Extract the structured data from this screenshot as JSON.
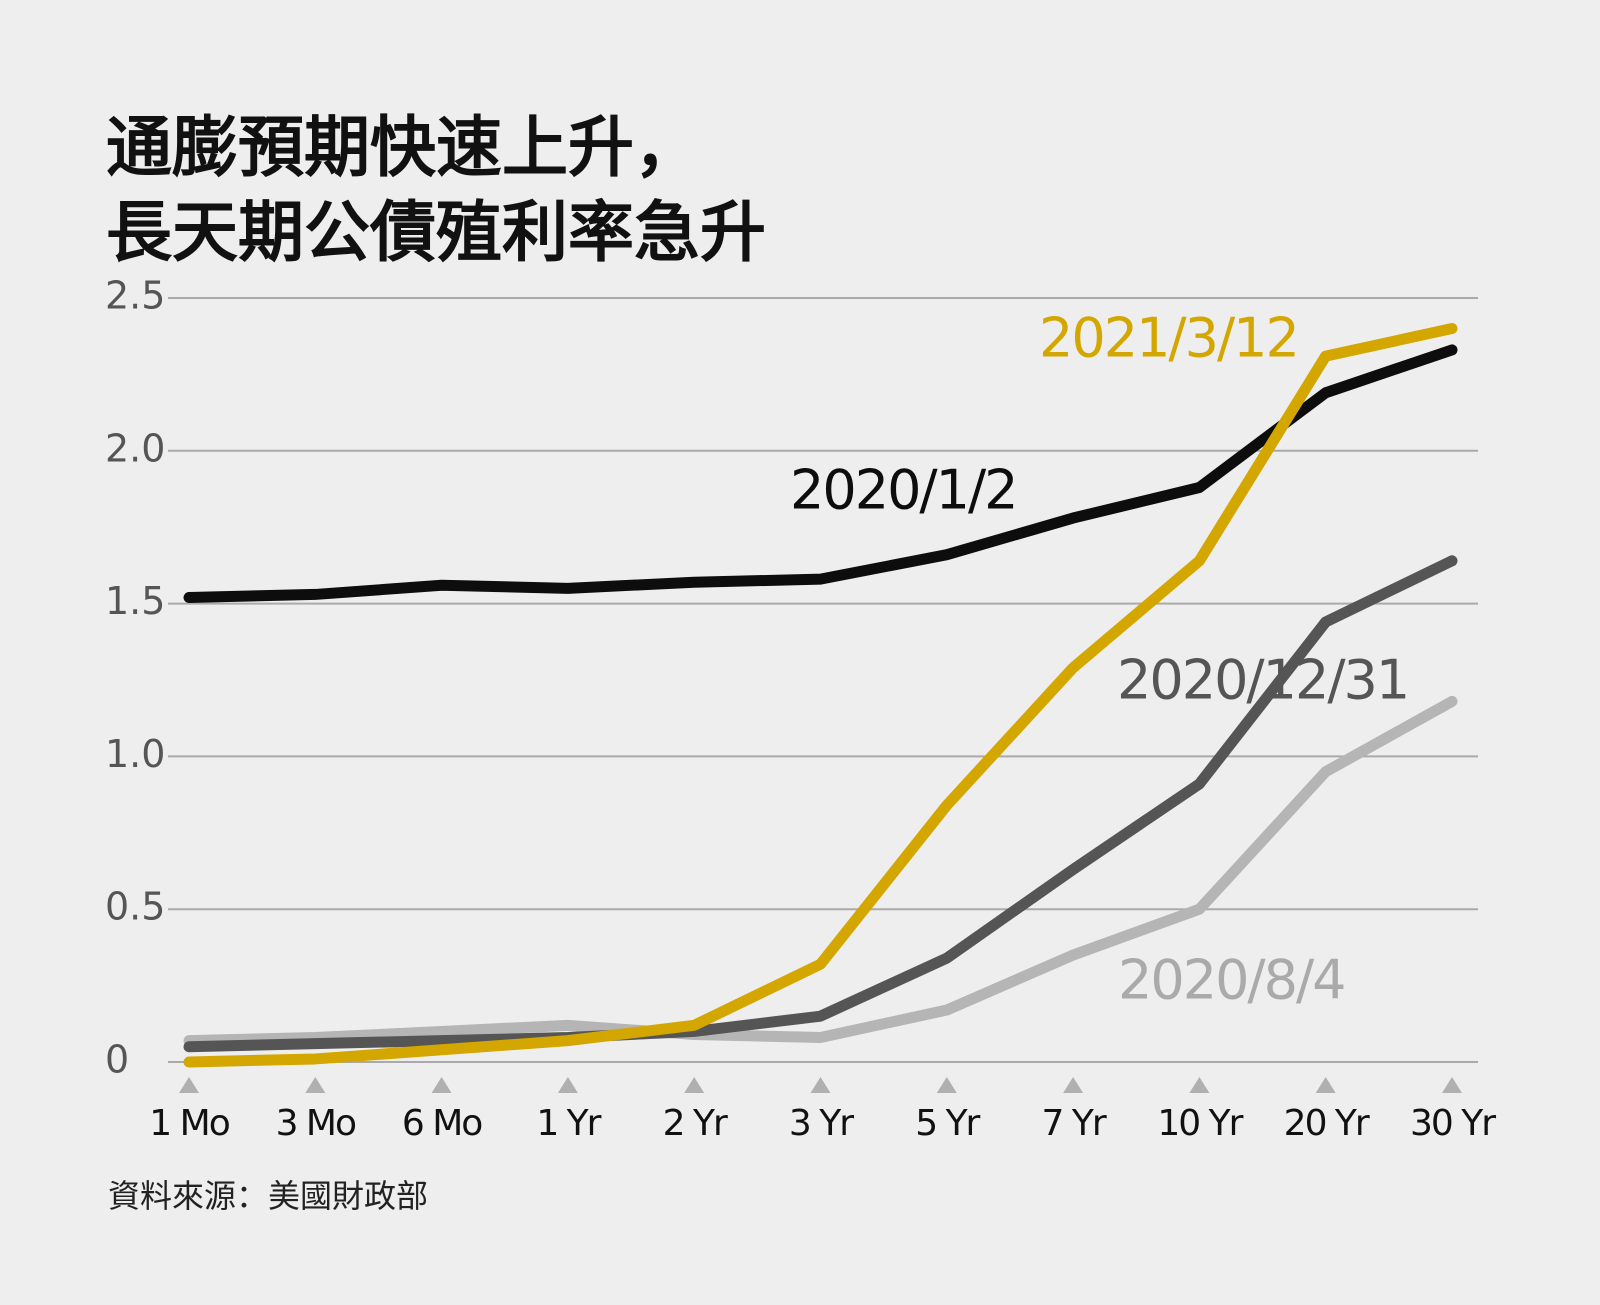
{
  "chart_data": {
    "type": "line",
    "title": [
      "通膨預期快速上升，",
      "長天期公債殖利率急升"
    ],
    "source": "資料來源：美國財政部",
    "categories": [
      "1 Mo",
      "3 Mo",
      "6 Mo",
      "1 Yr",
      "2 Yr",
      "3 Yr",
      "5 Yr",
      "7 Yr",
      "10 Yr",
      "20 Yr",
      "30 Yr"
    ],
    "series": [
      {
        "name": "2020/1/2",
        "color": "#0d0d0d",
        "values": [
          1.52,
          1.53,
          1.56,
          1.55,
          1.57,
          1.58,
          1.66,
          1.78,
          1.88,
          2.19,
          2.33
        ]
      },
      {
        "name": "2020/8/4",
        "color": "#b5b5b5",
        "values": [
          0.07,
          0.08,
          0.1,
          0.12,
          0.09,
          0.08,
          0.17,
          0.35,
          0.5,
          0.95,
          1.18
        ]
      },
      {
        "name": "2020/12/31",
        "color": "#555555",
        "values": [
          0.05,
          0.06,
          0.07,
          0.08,
          0.1,
          0.15,
          0.34,
          0.63,
          0.91,
          1.44,
          1.64
        ]
      },
      {
        "name": "2021/3/12",
        "color": "#d4a600",
        "values": [
          0.0,
          0.01,
          0.04,
          0.07,
          0.12,
          0.32,
          0.84,
          1.29,
          1.64,
          2.31,
          2.4
        ]
      }
    ],
    "ylim": [
      0,
      2.5
    ],
    "yticks": [
      0,
      0.5,
      {
        "value": 1,
        "label": "1.0"
      },
      1.5,
      {
        "value": 2,
        "label": "2.0"
      },
      2.5
    ],
    "grid": true
  }
}
